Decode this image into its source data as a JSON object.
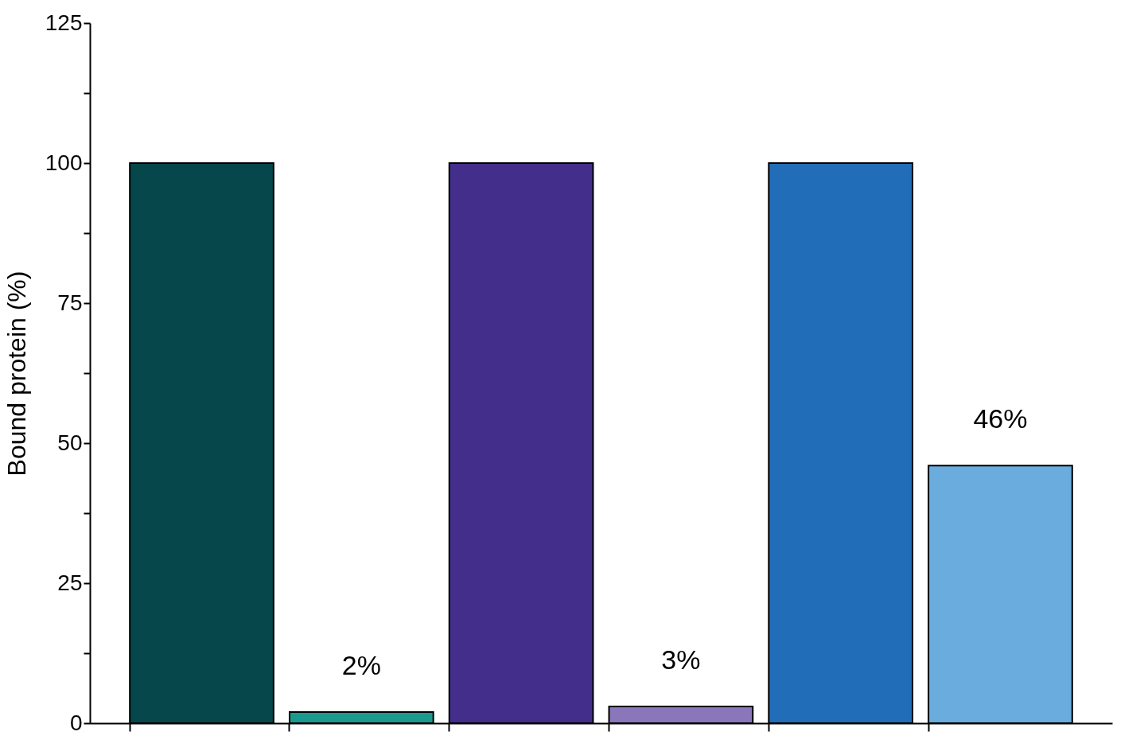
{
  "chart_data": {
    "type": "bar",
    "ylabel": "Bound protein (%)",
    "categories": [
      null,
      null,
      null,
      null,
      null,
      null
    ],
    "values": [
      100,
      2,
      100,
      3,
      100,
      46
    ],
    "colors": [
      "#05474a",
      "#1a9a8e",
      "#432e8c",
      "#8a77bb",
      "#216db7",
      "#6aacdd"
    ],
    "value_labels": [
      null,
      "2%",
      null,
      "3%",
      null,
      "46%"
    ],
    "ylim": [
      0,
      125
    ],
    "yticks": [
      0,
      {
        "value": 12.5,
        "label": null
      },
      25,
      {
        "value": 37.5,
        "label": null
      },
      50,
      {
        "value": 62.5,
        "label": null
      },
      75,
      {
        "value": 87.5,
        "label": null
      },
      100,
      {
        "value": 112.5,
        "label": null
      },
      125
    ],
    "grid": false
  }
}
